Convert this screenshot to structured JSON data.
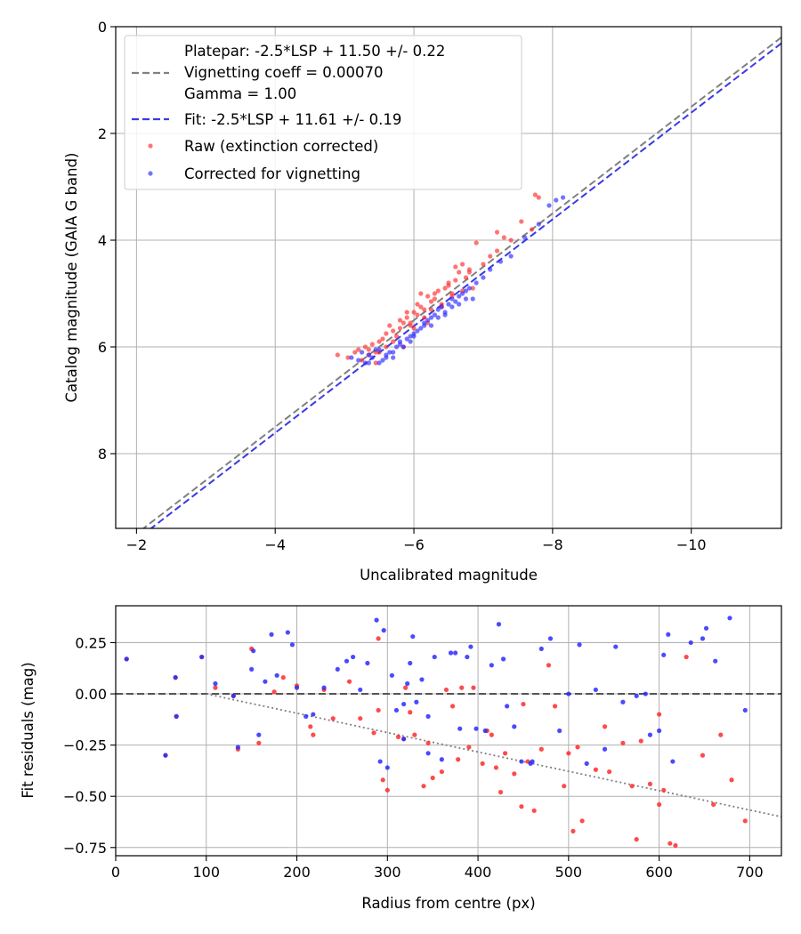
{
  "chart_data": [
    {
      "type": "scatter",
      "xlabel": "Uncalibrated magnitude",
      "ylabel": "Catalog magnitude (GAIA G band)",
      "xlim": [
        -1.7,
        -11.3
      ],
      "ylim": [
        9.4,
        0
      ],
      "x_inverted": true,
      "y_inverted": true,
      "xticks": [
        -2,
        -4,
        -6,
        -8,
        -10
      ],
      "xtick_labels": [
        "−2",
        "−4",
        "−6",
        "−8",
        "−10"
      ],
      "yticks": [
        0,
        2,
        4,
        6,
        8
      ],
      "ytick_labels": [
        "0",
        "2",
        "4",
        "6",
        "8"
      ],
      "grid": true,
      "legend_position": "top-left",
      "lines": [
        {
          "name": "Platepar: -2.5*LSP + 11.50 +/- 0.22",
          "style": "dashed",
          "color": "#808080",
          "slope": 1,
          "intercept": 11.5
        },
        {
          "name": "Fit: -2.5*LSP + 11.61 +/- 0.19",
          "style": "dashed",
          "color": "#3a3ae6",
          "slope": 1,
          "intercept": 11.61
        }
      ],
      "legend_text_only": [
        "Vignetting coeff = 0.00070",
        "Gamma = 1.00"
      ],
      "series": [
        {
          "name": "Raw (extinction corrected)",
          "color": "#ff2a2a",
          "x": [
            -4.9,
            -5.05,
            -5.15,
            -5.2,
            -5.25,
            -5.3,
            -5.35,
            -5.4,
            -5.45,
            -5.5,
            -5.55,
            -5.6,
            -5.65,
            -5.7,
            -5.75,
            -5.8,
            -5.85,
            -5.9,
            -5.95,
            -6.0,
            -6.05,
            -6.1,
            -6.15,
            -6.2,
            -6.25,
            -6.3,
            -6.35,
            -6.4,
            -6.45,
            -6.5,
            -6.55,
            -6.6,
            -6.65,
            -6.7,
            -6.75,
            -6.8,
            -6.85,
            -6.9,
            -7.0,
            -7.1,
            -7.2,
            -7.3,
            -7.4,
            -7.55,
            -7.7,
            -7.75,
            -7.8,
            -5.35,
            -5.6,
            -5.8,
            -5.95,
            -6.05,
            -6.15,
            -6.25,
            -6.4,
            -6.55,
            -6.7,
            -6.2,
            -6.0,
            -5.85,
            -5.45,
            -5.5,
            -5.7,
            -5.9,
            -6.1,
            -6.3,
            -6.5,
            -6.6,
            -6.8,
            -7.2
          ],
          "y": [
            6.15,
            6.2,
            6.1,
            6.05,
            6.25,
            6.0,
            6.15,
            5.95,
            6.1,
            5.9,
            5.85,
            6.0,
            5.6,
            5.7,
            5.8,
            5.5,
            5.55,
            5.45,
            5.6,
            5.35,
            5.2,
            5.0,
            5.3,
            5.05,
            5.15,
            5.1,
            4.95,
            5.25,
            4.9,
            4.85,
            5.0,
            4.75,
            4.6,
            4.45,
            4.7,
            4.55,
            4.9,
            4.05,
            4.45,
            4.3,
            4.2,
            3.95,
            4.0,
            3.65,
            3.8,
            3.15,
            3.2,
            6.05,
            5.75,
            5.65,
            5.55,
            5.4,
            5.45,
            5.3,
            5.2,
            5.05,
            4.95,
            5.55,
            5.65,
            6.0,
            6.3,
            6.1,
            5.9,
            5.35,
            5.25,
            5.0,
            4.8,
            4.5,
            4.6,
            3.85
          ]
        },
        {
          "name": "Corrected for vignetting",
          "color": "#2a2aff",
          "x": [
            -5.1,
            -5.2,
            -5.25,
            -5.3,
            -5.35,
            -5.4,
            -5.45,
            -5.5,
            -5.55,
            -5.6,
            -5.65,
            -5.7,
            -5.75,
            -5.8,
            -5.85,
            -5.9,
            -5.95,
            -6.0,
            -6.05,
            -6.1,
            -6.15,
            -6.2,
            -6.25,
            -6.3,
            -6.35,
            -6.4,
            -6.45,
            -6.5,
            -6.55,
            -6.6,
            -6.65,
            -6.7,
            -6.75,
            -6.8,
            -6.9,
            -7.0,
            -7.1,
            -7.25,
            -7.4,
            -7.6,
            -7.8,
            -7.95,
            -8.05,
            -8.15,
            -5.35,
            -5.6,
            -5.8,
            -6.0,
            -6.15,
            -6.35,
            -6.55,
            -6.75,
            -5.5,
            -5.7,
            -5.95,
            -6.25,
            -6.45,
            -6.65,
            -6.85
          ],
          "y": [
            6.2,
            6.25,
            6.1,
            6.3,
            6.15,
            6.2,
            6.05,
            6.3,
            6.25,
            6.15,
            6.1,
            6.2,
            6.0,
            5.9,
            6.0,
            5.85,
            5.8,
            5.75,
            5.7,
            5.65,
            5.55,
            5.5,
            5.45,
            5.4,
            5.3,
            5.25,
            5.35,
            5.2,
            5.1,
            5.15,
            5.05,
            5.0,
            4.95,
            4.9,
            4.8,
            4.7,
            4.55,
            4.4,
            4.3,
            3.95,
            3.7,
            3.35,
            3.25,
            3.2,
            6.3,
            6.2,
            5.95,
            5.8,
            5.6,
            5.45,
            5.25,
            5.1,
            6.05,
            6.1,
            5.9,
            5.6,
            5.4,
            5.2,
            5.1
          ]
        }
      ]
    },
    {
      "type": "scatter",
      "xlabel": "Radius from centre (px)",
      "ylabel": "Fit residuals (mag)",
      "xlim": [
        0,
        735
      ],
      "ylim": [
        -0.79,
        0.43
      ],
      "xticks": [
        0,
        100,
        200,
        300,
        400,
        500,
        600,
        700
      ],
      "xtick_labels": [
        "0",
        "100",
        "200",
        "300",
        "400",
        "500",
        "600",
        "700"
      ],
      "yticks": [
        0.25,
        0.0,
        -0.25,
        -0.5,
        -0.75
      ],
      "ytick_labels": [
        "0.25",
        "0.00",
        "−0.25",
        "−0.50",
        "−0.75"
      ],
      "grid": true,
      "reference_lines": [
        {
          "style": "dashed",
          "color": "#555555",
          "y": 0
        },
        {
          "style": "dotted",
          "color": "#808080",
          "points": [
            [
              100,
              0.0
            ],
            [
              735,
              -0.6
            ]
          ]
        }
      ],
      "series": [
        {
          "name": "Raw",
          "color": "#ff2a2a",
          "x": [
            12,
            55,
            66,
            67,
            95,
            110,
            130,
            135,
            150,
            158,
            175,
            185,
            200,
            215,
            218,
            230,
            240,
            258,
            270,
            285,
            290,
            295,
            300,
            312,
            318,
            325,
            330,
            340,
            345,
            350,
            360,
            372,
            378,
            382,
            390,
            395,
            405,
            410,
            420,
            425,
            430,
            440,
            448,
            455,
            462,
            470,
            478,
            485,
            495,
            505,
            510,
            515,
            530,
            545,
            560,
            570,
            575,
            580,
            590,
            600,
            605,
            612,
            618,
            630,
            648,
            660,
            668,
            680,
            695,
            290,
            320,
            365,
            415,
            450,
            500,
            540,
            600
          ],
          "y": [
            0.17,
            -0.3,
            0.08,
            -0.11,
            0.18,
            0.03,
            -0.01,
            -0.27,
            0.22,
            -0.24,
            0.01,
            0.08,
            0.04,
            -0.16,
            -0.2,
            0.02,
            -0.12,
            0.06,
            -0.12,
            -0.19,
            0.27,
            -0.42,
            -0.47,
            -0.21,
            -0.22,
            -0.09,
            -0.2,
            -0.45,
            -0.24,
            -0.41,
            -0.38,
            -0.06,
            -0.32,
            0.03,
            -0.26,
            0.03,
            -0.34,
            -0.18,
            -0.36,
            -0.48,
            -0.29,
            -0.39,
            -0.55,
            -0.33,
            -0.57,
            -0.27,
            0.14,
            -0.06,
            -0.45,
            -0.67,
            -0.26,
            -0.62,
            -0.37,
            -0.38,
            -0.24,
            -0.45,
            -0.71,
            -0.23,
            -0.44,
            -0.54,
            -0.47,
            -0.73,
            -0.74,
            0.18,
            -0.3,
            -0.54,
            -0.2,
            -0.42,
            -0.62,
            -0.08,
            0.03,
            0.02,
            -0.2,
            -0.05,
            -0.29,
            -0.16,
            -0.1
          ]
        },
        {
          "name": "Corrected",
          "color": "#2a2aff",
          "x": [
            12,
            55,
            66,
            67,
            95,
            110,
            130,
            135,
            150,
            152,
            158,
            165,
            172,
            178,
            190,
            195,
            200,
            210,
            218,
            230,
            245,
            255,
            262,
            270,
            278,
            288,
            292,
            296,
            300,
            305,
            310,
            318,
            322,
            325,
            328,
            332,
            338,
            345,
            352,
            360,
            370,
            375,
            380,
            388,
            392,
            398,
            408,
            415,
            423,
            428,
            432,
            440,
            448,
            458,
            470,
            480,
            490,
            500,
            512,
            520,
            530,
            540,
            552,
            560,
            575,
            585,
            590,
            600,
            605,
            610,
            615,
            635,
            648,
            652,
            662,
            678,
            695,
            318,
            345,
            460
          ],
          "y": [
            0.17,
            -0.3,
            0.08,
            -0.11,
            0.18,
            0.05,
            -0.01,
            -0.26,
            0.12,
            0.21,
            -0.2,
            0.06,
            0.29,
            0.09,
            0.3,
            0.24,
            0.03,
            -0.11,
            -0.1,
            0.03,
            0.12,
            0.16,
            0.18,
            0.02,
            0.15,
            0.36,
            -0.33,
            0.31,
            -0.36,
            0.09,
            -0.08,
            -0.22,
            0.05,
            0.15,
            0.28,
            -0.04,
            0.07,
            -0.29,
            0.18,
            -0.32,
            0.2,
            0.2,
            -0.17,
            0.18,
            0.23,
            -0.17,
            -0.18,
            0.14,
            0.34,
            0.17,
            -0.06,
            -0.16,
            -0.33,
            -0.34,
            0.22,
            0.27,
            -0.18,
            0.0,
            0.24,
            -0.34,
            0.02,
            -0.27,
            0.23,
            -0.04,
            -0.01,
            0.0,
            -0.2,
            -0.18,
            0.19,
            0.29,
            -0.33,
            0.25,
            0.27,
            0.32,
            0.16,
            0.37,
            -0.08,
            -0.05,
            -0.11,
            -0.33
          ]
        }
      ]
    }
  ],
  "legend": {
    "platepar": "Platepar: -2.5*LSP + 11.50 +/- 0.22",
    "vignetting": "Vignetting coeff = 0.00070",
    "gamma": "Gamma = 1.00",
    "fit": "Fit: -2.5*LSP + 11.61 +/- 0.19",
    "raw": "Raw (extinction corrected)",
    "corrected": "Corrected for vignetting"
  }
}
